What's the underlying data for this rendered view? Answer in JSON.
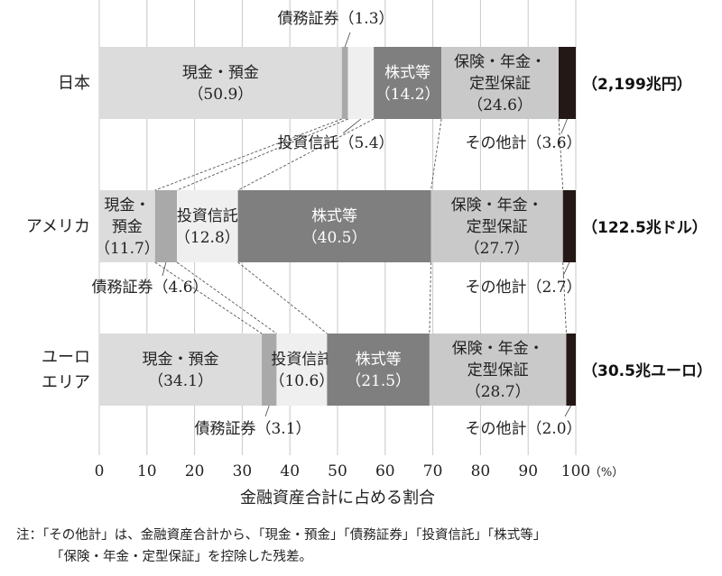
{
  "chart_data": {
    "type": "bar",
    "orientation": "horizontal-stacked-100",
    "xlabel": "金融資産合計に占める割合",
    "x_unit": "（%）",
    "xlim": [
      0,
      100
    ],
    "xticks": [
      "0",
      "10",
      "20",
      "30",
      "40",
      "50",
      "60",
      "70",
      "80",
      "90",
      "100"
    ],
    "grid": true,
    "categories": [
      "日本",
      "アメリカ",
      "ユーロエリア"
    ],
    "category_labels": [
      [
        "日本"
      ],
      [
        "アメリカ"
      ],
      [
        "ユーロ",
        "エリア"
      ]
    ],
    "totals": [
      "（2,199兆円）",
      "（122.5兆ドル）",
      "（30.5兆ユーロ）"
    ],
    "series": [
      {
        "name": "現金・預金",
        "values": [
          50.9,
          11.7,
          34.1
        ],
        "color": "#dcdcdc"
      },
      {
        "name": "債務証券",
        "values": [
          1.3,
          4.6,
          3.1
        ],
        "color": "#a9a9a9"
      },
      {
        "name": "投資信託",
        "values": [
          5.4,
          12.8,
          10.6
        ],
        "color": "#efefef"
      },
      {
        "name": "株式等",
        "values": [
          14.2,
          40.5,
          21.5
        ],
        "color": "#7f7f7f"
      },
      {
        "name": "保険・年金・定型保証",
        "values": [
          24.6,
          27.7,
          28.7
        ],
        "color": "#c9c9c9"
      },
      {
        "name": "その他計",
        "values": [
          3.6,
          2.7,
          2.0
        ],
        "color": "#231815"
      }
    ],
    "segment_labels": [
      [
        [
          "現金・預金",
          "（50.9）"
        ],
        null,
        null,
        [
          "株式等",
          "（14.2）"
        ],
        [
          "保険・年金・",
          "定型保証",
          "（24.6）"
        ],
        null
      ],
      [
        [
          "現金・",
          "預金",
          "（11.7）"
        ],
        null,
        [
          "投資信託",
          "（12.8）"
        ],
        [
          "株式等",
          "（40.5）"
        ],
        [
          "保険・年金・",
          "定型保証",
          "（27.7）"
        ],
        null
      ],
      [
        [
          "現金・預金",
          "（34.1）"
        ],
        null,
        [
          "投資信託",
          "（10.6）"
        ],
        [
          "株式等",
          "（21.5）"
        ],
        [
          "保険・年金・",
          "定型保証",
          "（28.7）"
        ],
        null
      ]
    ],
    "callouts": [
      [
        "債務証券（1.3）",
        "投資信託（5.4）",
        "その他計（3.6）"
      ],
      [
        "債務証券（4.6）",
        "その他計（2.7）"
      ],
      [
        "債務証券（3.1）",
        "その他計（2.0）"
      ]
    ],
    "note": [
      "注：「その他計」は、金融資産合計から、「現金・預金」「債務証券」「投資信託」「株式等」",
      "「保険・年金・定型保証」を控除した残差。"
    ]
  }
}
